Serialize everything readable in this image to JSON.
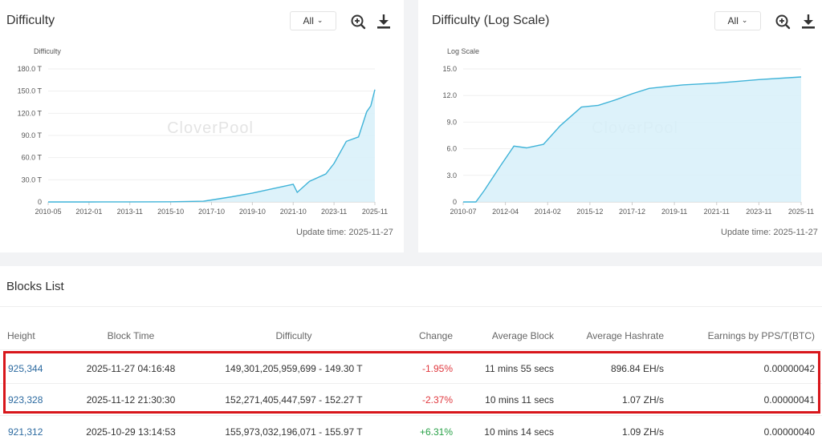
{
  "colors": {
    "accent": "#3fb3d8",
    "area": "#d7f0f9",
    "negative": "#e0383e",
    "positive": "#27a046",
    "highlight": "#d8161b",
    "link": "#2c6aa0"
  },
  "difficulty_panel": {
    "title": "Difficulty",
    "range": "All",
    "zoom_icon": "zoom-in-icon",
    "download_icon": "download-icon",
    "watermark": "CloverPool",
    "update_time": "Update time: 2025-11-27"
  },
  "log_panel": {
    "title": "Difficulty (Log Scale)",
    "range": "All",
    "zoom_icon": "zoom-in-icon",
    "download_icon": "download-icon",
    "watermark": "CloverPool",
    "update_time": "Update time: 2025-11-27"
  },
  "chart_data": [
    {
      "type": "area",
      "title": "Difficulty",
      "ylabel": "Difficulty",
      "ylim": [
        0,
        180
      ],
      "yticks": [
        "180.0 T",
        "150.0 T",
        "120.0 T",
        "90.0 T",
        "60.0 T",
        "30.0 T",
        "0"
      ],
      "ytick_values": [
        180,
        150,
        120,
        90,
        60,
        30,
        0
      ],
      "xticks": [
        "2010-05",
        "2012-01",
        "2013-11",
        "2015-10",
        "2017-10",
        "2019-10",
        "2021-10",
        "2023-11",
        "2025-11"
      ],
      "x": [
        0,
        1,
        2,
        3,
        3.8,
        4.5,
        5.0,
        5.5,
        6.0,
        6.1,
        6.4,
        6.8,
        7.0,
        7.3,
        7.6,
        7.8,
        7.9,
        8.0
      ],
      "values": [
        0,
        0,
        0.1,
        0.2,
        1,
        7,
        12,
        18,
        24,
        13,
        28,
        38,
        52,
        82,
        88,
        122,
        130,
        152
      ]
    },
    {
      "type": "area",
      "title": "Difficulty (Log Scale)",
      "ylabel": "Log Scale",
      "ylim": [
        0,
        15
      ],
      "yticks": [
        "15.0",
        "12.0",
        "9.0",
        "6.0",
        "3.0",
        "0"
      ],
      "ytick_values": [
        15,
        12,
        9,
        6,
        3,
        0
      ],
      "xticks": [
        "2010-07",
        "2012-04",
        "2014-02",
        "2015-12",
        "2017-12",
        "2019-11",
        "2021-11",
        "2023-11",
        "2025-11"
      ],
      "x": [
        0,
        0.3,
        0.5,
        0.9,
        1.2,
        1.5,
        1.9,
        2.3,
        2.8,
        3.2,
        3.6,
        4.0,
        4.4,
        4.8,
        5.2,
        6.0,
        7.0,
        8.0
      ],
      "values": [
        0,
        0,
        1.3,
        4.2,
        6.3,
        6.1,
        6.5,
        8.6,
        10.7,
        10.9,
        11.5,
        12.2,
        12.8,
        13.0,
        13.2,
        13.4,
        13.8,
        14.1
      ]
    }
  ],
  "blocks": {
    "title": "Blocks List",
    "headers": {
      "height": "Height",
      "block_time": "Block Time",
      "difficulty": "Difficulty",
      "change": "Change",
      "average_block": "Average Block",
      "average_hashrate": "Average Hashrate",
      "earnings": "Earnings by PPS/T(BTC)"
    },
    "rows": [
      {
        "height": "925,344",
        "block_time": "2025-11-27 04:16:48",
        "difficulty": "149,301,205,959,699 - 149.30 T",
        "change": "-1.95%",
        "average_block": "11 mins 55 secs",
        "average_hashrate": "896.84 EH/s",
        "earnings": "0.00000042"
      },
      {
        "height": "923,328",
        "block_time": "2025-11-12 21:30:30",
        "difficulty": "152,271,405,447,597 - 152.27 T",
        "change": "-2.37%",
        "average_block": "10 mins 11 secs",
        "average_hashrate": "1.07 ZH/s",
        "earnings": "0.00000041"
      },
      {
        "height": "921,312",
        "block_time": "2025-10-29 13:14:53",
        "difficulty": "155,973,032,196,071 - 155.97 T",
        "change": "+6.31%",
        "average_block": "10 mins 14 secs",
        "average_hashrate": "1.09 ZH/s",
        "earnings": "0.00000040"
      }
    ]
  }
}
